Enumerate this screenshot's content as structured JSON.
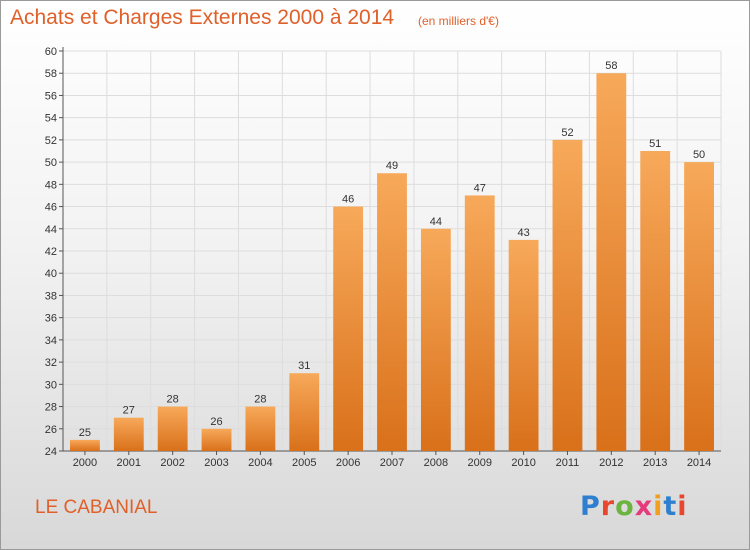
{
  "header": {
    "title": "Achats et Charges Externes 2000 à 2014",
    "unit": "(en milliers d'€)"
  },
  "footer": {
    "place": "LE CABANIAL",
    "brand": "Proxiti",
    "brand_colors": [
      "#2f7fd0",
      "#e8472f",
      "#6cb33f",
      "#e53b7c",
      "#f0a01e",
      "#2f7fd0",
      "#e8472f"
    ]
  },
  "colors": {
    "bar_top": "#f7a95a",
    "bar_bottom": "#d9701a",
    "accent": "#e0602a",
    "grid": "#dddddd",
    "axis": "#555555"
  },
  "chart_data": {
    "type": "bar",
    "title": "Achats et Charges Externes 2000 à 2014",
    "subtitle": "(en milliers d'€)",
    "categories": [
      "2000",
      "2001",
      "2002",
      "2003",
      "2004",
      "2005",
      "2006",
      "2007",
      "2008",
      "2009",
      "2010",
      "2011",
      "2012",
      "2013",
      "2014"
    ],
    "values": [
      25,
      27,
      28,
      26,
      28,
      31,
      46,
      49,
      44,
      47,
      43,
      52,
      58,
      51,
      50
    ],
    "ylim": [
      24,
      60
    ],
    "yticks": [
      24,
      26,
      28,
      30,
      32,
      34,
      36,
      38,
      40,
      42,
      44,
      46,
      48,
      50,
      52,
      54,
      56,
      58,
      60
    ],
    "grid": true,
    "data_labels": true,
    "legend": "none"
  }
}
